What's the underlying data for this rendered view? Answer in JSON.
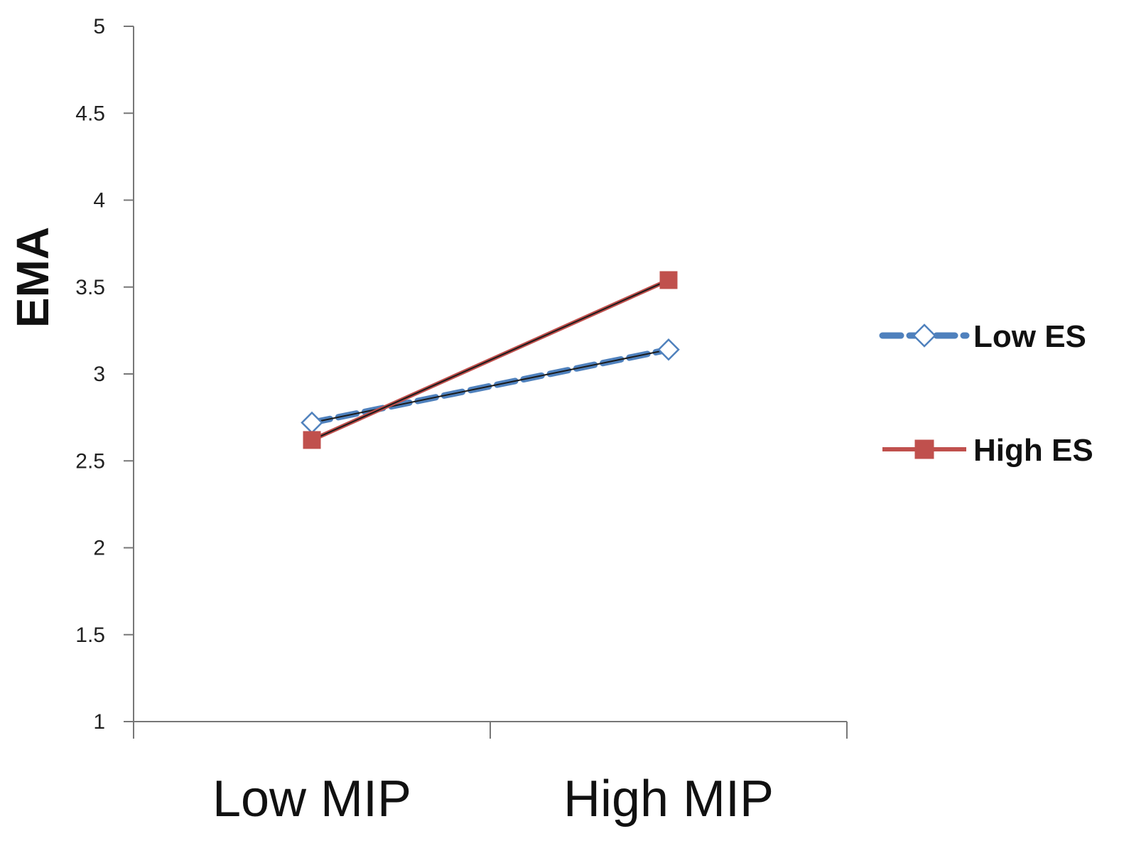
{
  "chart_data": {
    "type": "line",
    "title": "",
    "xlabel": "",
    "ylabel": "EMA",
    "categories": [
      "Low MIP",
      "High MIP"
    ],
    "ylim": [
      1,
      5
    ],
    "y_ticks": [
      "1",
      "1.5",
      "2",
      "2.5",
      "3",
      "3.5",
      "4",
      "4.5",
      "5"
    ],
    "grid": false,
    "legend_position": "right",
    "series": [
      {
        "name": "Low ES",
        "values": [
          2.72,
          3.14
        ],
        "color": "#4F81BD",
        "line_style": "dashed",
        "marker": "open-diamond"
      },
      {
        "name": "High ES",
        "values": [
          2.62,
          3.54
        ],
        "color": "#C0504D",
        "line_style": "solid",
        "marker": "filled-square"
      }
    ]
  }
}
